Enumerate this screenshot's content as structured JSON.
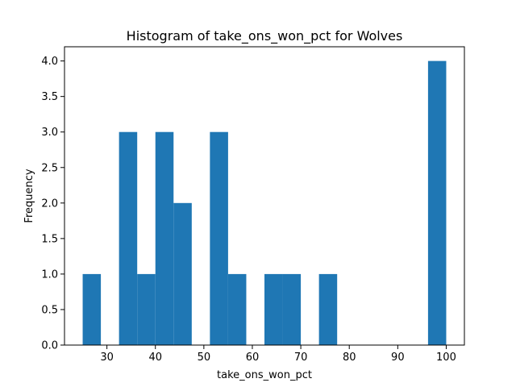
{
  "chart_data": {
    "type": "bar",
    "title": "Histogram of take_ons_won_pct for Wolves",
    "xlabel": "take_ons_won_pct",
    "ylabel": "Frequency",
    "xlim": [
      21.25,
      103.75
    ],
    "ylim": [
      0,
      4.2
    ],
    "x_ticks": [
      30,
      40,
      50,
      60,
      70,
      80,
      90,
      100
    ],
    "y_ticks": [
      0.0,
      0.5,
      1.0,
      1.5,
      2.0,
      2.5,
      3.0,
      3.5,
      4.0
    ],
    "x_tick_labels": [
      "30",
      "40",
      "50",
      "60",
      "70",
      "80",
      "90",
      "100"
    ],
    "y_tick_labels": [
      "0.0",
      "0.5",
      "1.0",
      "1.5",
      "2.0",
      "2.5",
      "3.0",
      "3.5",
      "4.0"
    ],
    "bin_edges": [
      25,
      28.75,
      32.5,
      36.25,
      40,
      43.75,
      47.5,
      51.25,
      55,
      58.75,
      62.5,
      66.25,
      70,
      73.75,
      77.5,
      81.25,
      85,
      88.75,
      92.5,
      96.25,
      100
    ],
    "counts": [
      1,
      0,
      3,
      1,
      3,
      2,
      0,
      3,
      1,
      0,
      1,
      1,
      0,
      1,
      0,
      0,
      0,
      0,
      0,
      4
    ],
    "bar_color": "#1f77b4",
    "grid": false
  }
}
